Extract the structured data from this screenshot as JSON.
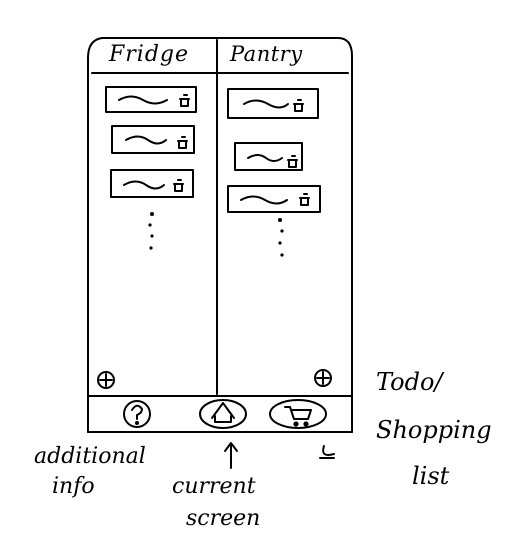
{
  "columns": {
    "fridge": {
      "title": "Fridge",
      "items": 3
    },
    "pantry": {
      "title": "Pantry",
      "items": 3
    }
  },
  "bottom_nav": {
    "items": [
      {
        "id": "info",
        "icon": "question-icon"
      },
      {
        "id": "home",
        "icon": "home-icon"
      },
      {
        "id": "shopping",
        "icon": "cart-icon"
      }
    ]
  },
  "annotations": {
    "additional_info": [
      "additional",
      "info"
    ],
    "current_screen": [
      "current",
      "screen"
    ],
    "todo_shopping_list": [
      "Todo/",
      "Shopping",
      "list"
    ]
  }
}
